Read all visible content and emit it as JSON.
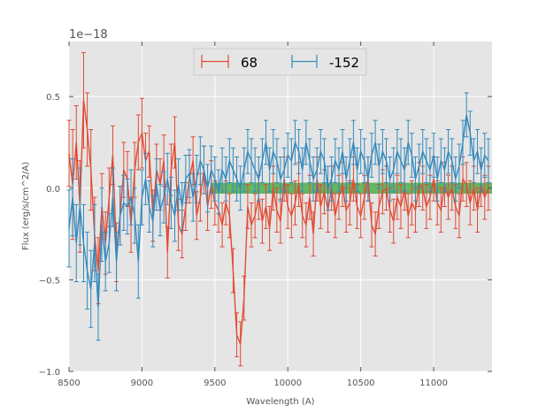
{
  "chart_data": {
    "type": "line",
    "title": "",
    "xlabel": "Wavelength (A)",
    "ylabel": "Flux (erg/s/cm^2/A)",
    "offset_text": "1e−18",
    "scale": 1e-18,
    "xlim": [
      8500,
      11400
    ],
    "ylim": [
      -1.0,
      0.8
    ],
    "grid": true,
    "legend_placement": "top-center",
    "x_ticks": [
      8500,
      9000,
      9500,
      10000,
      10500,
      11000
    ],
    "x_tick_labels": [
      "8500",
      "9000",
      "9500",
      "10000",
      "10500",
      "11000"
    ],
    "y_ticks": [
      -1.0,
      -0.5,
      0.0,
      0.5
    ],
    "y_tick_labels": [
      "−1.0",
      "−0.5",
      "0.0",
      "0.5"
    ],
    "band": {
      "x_start": 9470,
      "x_end": 11400,
      "y_low": -0.03,
      "y_high": 0.03,
      "color": "#2ca02c"
    },
    "x": [
      8500,
      8525,
      8550,
      8575,
      8600,
      8625,
      8650,
      8675,
      8700,
      8725,
      8750,
      8775,
      8800,
      8825,
      8850,
      8875,
      8900,
      8925,
      8950,
      8975,
      9000,
      9025,
      9050,
      9075,
      9100,
      9125,
      9150,
      9175,
      9200,
      9225,
      9250,
      9275,
      9300,
      9325,
      9350,
      9375,
      9400,
      9425,
      9450,
      9475,
      9500,
      9525,
      9550,
      9575,
      9600,
      9625,
      9650,
      9675,
      9700,
      9725,
      9750,
      9775,
      9800,
      9825,
      9850,
      9875,
      9900,
      9925,
      9950,
      9975,
      10000,
      10025,
      10050,
      10075,
      10100,
      10125,
      10150,
      10175,
      10200,
      10225,
      10250,
      10275,
      10300,
      10325,
      10350,
      10375,
      10400,
      10425,
      10450,
      10475,
      10500,
      10525,
      10550,
      10575,
      10600,
      10625,
      10650,
      10675,
      10700,
      10725,
      10750,
      10775,
      10800,
      10825,
      10850,
      10875,
      10900,
      10925,
      10950,
      10975,
      11000,
      11025,
      11050,
      11075,
      11100,
      11125,
      11150,
      11175,
      11200,
      11225,
      11250,
      11275,
      11300,
      11325,
      11350,
      11375
    ],
    "series": [
      {
        "name": "68",
        "color": "#e24a33",
        "values": [
          0.19,
          0.02,
          0.25,
          -0.1,
          0.48,
          0.32,
          0.1,
          -0.25,
          -0.45,
          -0.1,
          -0.3,
          -0.05,
          0.18,
          -0.35,
          -0.15,
          0.1,
          0.05,
          -0.2,
          0.1,
          0.25,
          0.3,
          0.15,
          0.2,
          -0.15,
          0.1,
          0.02,
          0.15,
          -0.35,
          0.1,
          0.25,
          -0.2,
          -0.25,
          -0.1,
          0.05,
          0.15,
          -0.15,
          -0.05,
          0.1,
          -0.1,
          0.02,
          -0.08,
          -0.12,
          -0.2,
          -0.08,
          -0.15,
          -0.45,
          -0.8,
          -0.85,
          -0.6,
          -0.1,
          -0.2,
          -0.15,
          -0.05,
          -0.18,
          -0.1,
          -0.22,
          0.0,
          -0.12,
          -0.18,
          0.05,
          -0.1,
          -0.15,
          -0.08,
          0.02,
          -0.15,
          -0.2,
          -0.05,
          -0.25,
          0.05,
          -0.1,
          -0.02,
          -0.12,
          0.0,
          -0.15,
          -0.05,
          0.02,
          -0.12,
          -0.08,
          0.05,
          -0.1,
          -0.15,
          -0.05,
          0.05,
          -0.2,
          -0.25,
          -0.1,
          -0.02,
          0.0,
          -0.12,
          -0.18,
          -0.05,
          -0.1,
          0.0,
          -0.15,
          -0.08,
          -0.12,
          0.02,
          0.0,
          -0.1,
          -0.05,
          0.05,
          -0.08,
          -0.12,
          0.02,
          -0.05,
          0.0,
          -0.1,
          -0.15,
          0.05,
          0.02,
          -0.08,
          0.0,
          -0.12,
          0.02,
          -0.05,
          0.0
        ],
        "errors": [
          0.18,
          0.3,
          0.2,
          0.25,
          0.26,
          0.2,
          0.22,
          0.2,
          0.18,
          0.18,
          0.17,
          0.16,
          0.16,
          0.16,
          0.16,
          0.15,
          0.15,
          0.15,
          0.15,
          0.15,
          0.19,
          0.15,
          0.14,
          0.14,
          0.14,
          0.14,
          0.14,
          0.14,
          0.14,
          0.14,
          0.14,
          0.13,
          0.13,
          0.13,
          0.13,
          0.13,
          0.13,
          0.13,
          0.13,
          0.13,
          0.12,
          0.12,
          0.12,
          0.12,
          0.12,
          0.12,
          0.12,
          0.12,
          0.12,
          0.12,
          0.12,
          0.12,
          0.12,
          0.12,
          0.12,
          0.12,
          0.12,
          0.12,
          0.12,
          0.12,
          0.12,
          0.12,
          0.12,
          0.12,
          0.12,
          0.12,
          0.12,
          0.12,
          0.12,
          0.12,
          0.12,
          0.12,
          0.12,
          0.12,
          0.12,
          0.12,
          0.12,
          0.12,
          0.12,
          0.12,
          0.12,
          0.12,
          0.12,
          0.12,
          0.12,
          0.12,
          0.12,
          0.12,
          0.12,
          0.12,
          0.12,
          0.12,
          0.12,
          0.12,
          0.12,
          0.12,
          0.12,
          0.12,
          0.12,
          0.12,
          0.12,
          0.12,
          0.12,
          0.12,
          0.12,
          0.12,
          0.12,
          0.12,
          0.12,
          0.12,
          0.12,
          0.12,
          0.12,
          0.12,
          0.12,
          0.12
        ]
      },
      {
        "name": "-152",
        "color": "#348abd",
        "values": [
          -0.22,
          -0.05,
          -0.3,
          -0.1,
          -0.3,
          -0.45,
          -0.55,
          -0.3,
          -0.65,
          -0.2,
          -0.4,
          -0.3,
          -0.05,
          -0.4,
          -0.15,
          -0.08,
          -0.1,
          -0.05,
          -0.15,
          -0.4,
          -0.05,
          0.05,
          -0.1,
          -0.18,
          0.02,
          -0.12,
          -0.05,
          0.05,
          -0.08,
          -0.15,
          0.02,
          -0.1,
          0.05,
          0.08,
          -0.05,
          0.05,
          0.15,
          0.1,
          0.0,
          0.1,
          0.05,
          -0.02,
          0.1,
          0.05,
          0.15,
          0.1,
          0.05,
          0.0,
          0.1,
          0.2,
          0.15,
          0.1,
          0.05,
          0.15,
          0.25,
          0.1,
          0.2,
          0.15,
          0.05,
          0.1,
          0.18,
          0.15,
          0.25,
          0.2,
          0.1,
          0.25,
          0.15,
          0.05,
          0.1,
          0.2,
          0.15,
          0.0,
          0.05,
          0.15,
          0.1,
          0.2,
          0.05,
          0.15,
          0.25,
          0.1,
          0.2,
          0.15,
          0.05,
          0.18,
          0.25,
          0.12,
          0.2,
          0.15,
          0.05,
          0.1,
          0.2,
          0.15,
          0.1,
          0.25,
          0.18,
          0.05,
          0.12,
          0.2,
          0.15,
          0.1,
          0.18,
          0.05,
          0.15,
          0.1,
          0.2,
          0.15,
          0.05,
          0.12,
          0.25,
          0.4,
          0.3,
          0.15,
          0.2,
          0.1,
          0.18,
          0.15
        ],
        "errors": [
          0.21,
          0.21,
          0.21,
          0.21,
          0.21,
          0.21,
          0.21,
          0.21,
          0.18,
          0.2,
          0.16,
          0.16,
          0.16,
          0.16,
          0.16,
          0.15,
          0.15,
          0.15,
          0.15,
          0.2,
          0.15,
          0.14,
          0.14,
          0.14,
          0.14,
          0.14,
          0.14,
          0.14,
          0.14,
          0.14,
          0.14,
          0.13,
          0.13,
          0.13,
          0.13,
          0.13,
          0.13,
          0.13,
          0.13,
          0.13,
          0.12,
          0.12,
          0.12,
          0.12,
          0.12,
          0.12,
          0.12,
          0.12,
          0.12,
          0.12,
          0.12,
          0.12,
          0.12,
          0.12,
          0.12,
          0.12,
          0.12,
          0.12,
          0.12,
          0.12,
          0.12,
          0.12,
          0.12,
          0.12,
          0.12,
          0.12,
          0.12,
          0.12,
          0.12,
          0.12,
          0.12,
          0.12,
          0.12,
          0.12,
          0.12,
          0.12,
          0.12,
          0.12,
          0.12,
          0.12,
          0.12,
          0.12,
          0.12,
          0.12,
          0.12,
          0.12,
          0.12,
          0.12,
          0.12,
          0.12,
          0.12,
          0.12,
          0.12,
          0.12,
          0.12,
          0.12,
          0.12,
          0.12,
          0.12,
          0.12,
          0.12,
          0.12,
          0.12,
          0.12,
          0.12,
          0.12,
          0.12,
          0.12,
          0.12,
          0.12,
          0.12,
          0.12,
          0.12,
          0.12,
          0.12,
          0.12
        ]
      }
    ]
  }
}
